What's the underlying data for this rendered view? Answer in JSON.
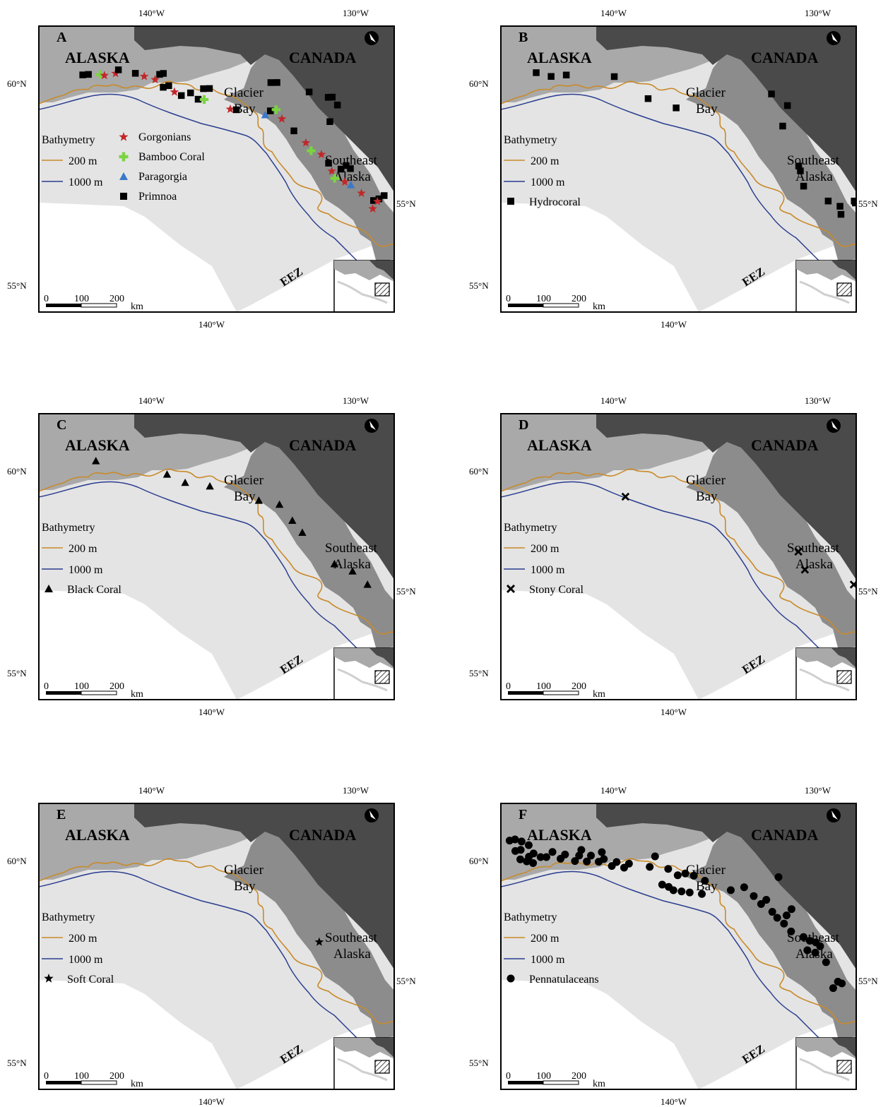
{
  "colors": {
    "land_alaska": "#a9a9a9",
    "land_canada": "#4a4a4a",
    "land_southeast": "#8c8c8c",
    "ocean_eez": "#e4e4e4",
    "ocean_out": "#ffffff",
    "iso_200": "#c98a2a",
    "iso_1000": "#2a3d8f",
    "gorgonian": "#c0282a",
    "bamboo": "#7bd341",
    "paragorgia": "#3a78c9",
    "black": "#000000"
  },
  "labels": {
    "alaska": "ALASKA",
    "canada": "CANADA",
    "glacier": "Glacier",
    "bay": "Bay",
    "southeast": "Southeast",
    "alaska_lower": "Alaska",
    "eez": "EEZ",
    "bathymetry": "Bathymetry",
    "iso200": "200 m",
    "iso1000": "1000 m",
    "scale0": "0",
    "scale100": "100",
    "scale200": "200",
    "km": "km",
    "lon140": "140°W",
    "lon130": "130°W",
    "lat60": "60°N",
    "lat55": "55°N"
  },
  "panels": [
    {
      "letter": "A",
      "legend": [
        {
          "label": "Gorgonians",
          "marker": "star",
          "color": "#c0282a"
        },
        {
          "label": "Bamboo Coral",
          "marker": "plus",
          "color": "#7bd341"
        },
        {
          "label": "Paragorgia",
          "marker": "triangle",
          "color": "#3a78c9"
        },
        {
          "label": "Primnoa",
          "marker": "square",
          "color": "#000000"
        }
      ],
      "points": [
        {
          "lon": -143.8,
          "lat": 59.92,
          "m": "square"
        },
        {
          "lon": -143.5,
          "lat": 59.95,
          "m": "square"
        },
        {
          "lon": -142.9,
          "lat": 59.98,
          "m": "plus"
        },
        {
          "lon": -142.7,
          "lat": 59.97,
          "m": "star"
        },
        {
          "lon": -142.1,
          "lat": 60.05,
          "m": "star"
        },
        {
          "lon": -141.9,
          "lat": 60.15,
          "m": "square"
        },
        {
          "lon": -141.1,
          "lat": 60.1,
          "m": "square"
        },
        {
          "lon": -140.7,
          "lat": 60.04,
          "m": "star"
        },
        {
          "lon": -140.2,
          "lat": 59.98,
          "m": "star"
        },
        {
          "lon": -139.9,
          "lat": 60.12,
          "m": "square"
        },
        {
          "lon": -139.7,
          "lat": 60.15,
          "m": "square"
        },
        {
          "lon": -139.9,
          "lat": 59.8,
          "m": "square"
        },
        {
          "lon": -139.6,
          "lat": 59.85,
          "m": "square"
        },
        {
          "lon": -139.4,
          "lat": 59.7,
          "m": "star"
        },
        {
          "lon": -139.1,
          "lat": 59.62,
          "m": "square"
        },
        {
          "lon": -138.6,
          "lat": 59.7,
          "m": "square"
        },
        {
          "lon": -138.3,
          "lat": 59.55,
          "m": "square"
        },
        {
          "lon": -138.0,
          "lat": 59.55,
          "m": "plus"
        },
        {
          "lon": -137.9,
          "lat": 59.82,
          "m": "square"
        },
        {
          "lon": -137.6,
          "lat": 59.83,
          "m": "square"
        },
        {
          "lon": -136.8,
          "lat": 59.33,
          "m": "star"
        },
        {
          "lon": -136.5,
          "lat": 59.32,
          "m": "square"
        },
        {
          "lon": -135.1,
          "lat": 59.2,
          "m": "triangle"
        },
        {
          "lon": -134.8,
          "lat": 59.3,
          "m": "square"
        },
        {
          "lon": -134.5,
          "lat": 59.33,
          "m": "plus"
        },
        {
          "lon": -134.3,
          "lat": 59.1,
          "m": "star"
        },
        {
          "lon": -134.5,
          "lat": 60.0,
          "m": "square"
        },
        {
          "lon": -134.2,
          "lat": 60.0,
          "m": "square"
        },
        {
          "lon": -133.8,
          "lat": 58.8,
          "m": "square"
        },
        {
          "lon": -133.3,
          "lat": 58.5,
          "m": "star"
        },
        {
          "lon": -133.1,
          "lat": 58.3,
          "m": "plus"
        },
        {
          "lon": -132.6,
          "lat": 58.2,
          "m": "star"
        },
        {
          "lon": -132.3,
          "lat": 57.98,
          "m": "square"
        },
        {
          "lon": -132.7,
          "lat": 59.75,
          "m": "square"
        },
        {
          "lon": -131.7,
          "lat": 57.82,
          "m": "square"
        },
        {
          "lon": -132.2,
          "lat": 57.78,
          "m": "star"
        },
        {
          "lon": -131.4,
          "lat": 57.9,
          "m": "square"
        },
        {
          "lon": -131.2,
          "lat": 57.82,
          "m": "square"
        },
        {
          "lon": -132.1,
          "lat": 57.6,
          "m": "plus"
        },
        {
          "lon": -131.6,
          "lat": 57.5,
          "m": "star"
        },
        {
          "lon": -131.3,
          "lat": 57.42,
          "m": "triangle"
        },
        {
          "lon": -131.8,
          "lat": 59.6,
          "m": "square"
        },
        {
          "lon": -131.6,
          "lat": 59.6,
          "m": "square"
        },
        {
          "lon": -131.4,
          "lat": 59.4,
          "m": "square"
        },
        {
          "lon": -131.9,
          "lat": 59.0,
          "m": "square"
        },
        {
          "lon": -130.8,
          "lat": 57.2,
          "m": "star"
        },
        {
          "lon": -130.2,
          "lat": 57.0,
          "m": "square"
        },
        {
          "lon": -129.9,
          "lat": 57.03,
          "m": "square"
        },
        {
          "lon": -129.6,
          "lat": 57.1,
          "m": "square"
        },
        {
          "lon": -130.3,
          "lat": 56.8,
          "m": "star"
        },
        {
          "lon": -130.0,
          "lat": 56.97,
          "m": "star"
        }
      ]
    },
    {
      "letter": "B",
      "legend": [
        {
          "label": "Hydrocoral",
          "marker": "square",
          "color": "#000000"
        }
      ],
      "points": [
        {
          "lon": -144.2,
          "lat": 59.95,
          "m": "square"
        },
        {
          "lon": -143.5,
          "lat": 59.9,
          "m": "square"
        },
        {
          "lon": -142.7,
          "lat": 59.98,
          "m": "square"
        },
        {
          "lon": -140.3,
          "lat": 60.05,
          "m": "square"
        },
        {
          "lon": -138.9,
          "lat": 59.55,
          "m": "square"
        },
        {
          "lon": -137.6,
          "lat": 59.35,
          "m": "square"
        },
        {
          "lon": -132.7,
          "lat": 59.7,
          "m": "square"
        },
        {
          "lon": -132.0,
          "lat": 59.4,
          "m": "square"
        },
        {
          "lon": -132.4,
          "lat": 58.9,
          "m": "square"
        },
        {
          "lon": -131.9,
          "lat": 57.9,
          "m": "square"
        },
        {
          "lon": -131.85,
          "lat": 57.78,
          "m": "square"
        },
        {
          "lon": -131.8,
          "lat": 57.4,
          "m": "square"
        },
        {
          "lon": -130.6,
          "lat": 57.0,
          "m": "square"
        },
        {
          "lon": -130.0,
          "lat": 56.85,
          "m": "square"
        },
        {
          "lon": -130.0,
          "lat": 56.65,
          "m": "square"
        },
        {
          "lon": -129.2,
          "lat": 56.95,
          "m": "square"
        },
        {
          "lon": -129.15,
          "lat": 56.9,
          "m": "square"
        }
      ]
    },
    {
      "letter": "C",
      "legend": [
        {
          "label": "Black Coral",
          "marker": "triangle",
          "color": "#000000"
        }
      ],
      "points": [
        {
          "lon": -143.1,
          "lat": 60.0,
          "m": "triangle"
        },
        {
          "lon": -139.7,
          "lat": 59.82,
          "m": "triangle"
        },
        {
          "lon": -138.9,
          "lat": 59.64,
          "m": "triangle"
        },
        {
          "lon": -137.7,
          "lat": 59.58,
          "m": "triangle"
        },
        {
          "lon": -135.4,
          "lat": 59.25,
          "m": "triangle"
        },
        {
          "lon": -134.4,
          "lat": 59.15,
          "m": "triangle"
        },
        {
          "lon": -133.9,
          "lat": 58.75,
          "m": "triangle"
        },
        {
          "lon": -133.5,
          "lat": 58.45,
          "m": "triangle"
        },
        {
          "lon": -132.1,
          "lat": 57.65,
          "m": "triangle"
        },
        {
          "lon": -131.2,
          "lat": 57.45,
          "m": "triangle"
        },
        {
          "lon": -130.5,
          "lat": 57.1,
          "m": "triangle"
        }
      ]
    },
    {
      "letter": "D",
      "legend": [
        {
          "label": "Stony Coral",
          "marker": "cross",
          "color": "#000000"
        }
      ],
      "points": [
        {
          "lon": -140.2,
          "lat": 59.25,
          "m": "cross"
        },
        {
          "lon": -131.9,
          "lat": 57.95,
          "m": "cross"
        },
        {
          "lon": -131.7,
          "lat": 57.5,
          "m": "cross"
        },
        {
          "lon": -129.2,
          "lat": 57.05,
          "m": "cross"
        }
      ]
    },
    {
      "letter": "E",
      "legend": [
        {
          "label": "Soft Coral",
          "marker": "star",
          "color": "#000000"
        }
      ],
      "points": [
        {
          "lon": -132.8,
          "lat": 57.95,
          "m": "star"
        }
      ]
    },
    {
      "letter": "F",
      "legend": [
        {
          "label": "Pennatulaceans",
          "marker": "circle",
          "color": "#000000"
        }
      ],
      "points": [
        {
          "lon": -145.4,
          "lat": 60.1,
          "m": "circle"
        },
        {
          "lon": -145.1,
          "lat": 60.15,
          "m": "circle"
        },
        {
          "lon": -144.8,
          "lat": 60.12,
          "m": "circle"
        },
        {
          "lon": -144.5,
          "lat": 60.05,
          "m": "circle"
        },
        {
          "lon": -145.3,
          "lat": 59.85,
          "m": "circle"
        },
        {
          "lon": -145.0,
          "lat": 59.9,
          "m": "circle"
        },
        {
          "lon": -144.7,
          "lat": 59.75,
          "m": "circle"
        },
        {
          "lon": -144.4,
          "lat": 59.85,
          "m": "circle"
        },
        {
          "lon": -144.1,
          "lat": 59.78,
          "m": "circle"
        },
        {
          "lon": -143.8,
          "lat": 59.8,
          "m": "circle"
        },
        {
          "lon": -145.2,
          "lat": 59.65,
          "m": "circle"
        },
        {
          "lon": -144.9,
          "lat": 59.62,
          "m": "circle"
        },
        {
          "lon": -144.6,
          "lat": 59.6,
          "m": "circle"
        },
        {
          "lon": -143.4,
          "lat": 59.95,
          "m": "circle"
        },
        {
          "lon": -143.1,
          "lat": 59.8,
          "m": "circle"
        },
        {
          "lon": -142.8,
          "lat": 59.92,
          "m": "circle"
        },
        {
          "lon": -142.4,
          "lat": 59.78,
          "m": "circle"
        },
        {
          "lon": -142.1,
          "lat": 59.93,
          "m": "circle"
        },
        {
          "lon": -141.8,
          "lat": 59.8,
          "m": "circle"
        },
        {
          "lon": -141.5,
          "lat": 59.96,
          "m": "circle"
        },
        {
          "lon": -141.2,
          "lat": 59.82,
          "m": "circle"
        },
        {
          "lon": -140.9,
          "lat": 59.9,
          "m": "circle"
        },
        {
          "lon": -140.6,
          "lat": 59.74,
          "m": "circle"
        },
        {
          "lon": -140.3,
          "lat": 59.85,
          "m": "circle"
        },
        {
          "lon": -140.0,
          "lat": 59.72,
          "m": "circle"
        },
        {
          "lon": -139.7,
          "lat": 59.83,
          "m": "circle"
        },
        {
          "lon": -141.9,
          "lat": 60.08,
          "m": "circle"
        },
        {
          "lon": -140.9,
          "lat": 60.07,
          "m": "circle"
        },
        {
          "lon": -138.7,
          "lat": 59.78,
          "m": "circle"
        },
        {
          "lon": -138.3,
          "lat": 60.05,
          "m": "circle"
        },
        {
          "lon": -137.8,
          "lat": 59.75,
          "m": "circle"
        },
        {
          "lon": -137.4,
          "lat": 59.6,
          "m": "circle"
        },
        {
          "lon": -137.0,
          "lat": 59.65,
          "m": "circle"
        },
        {
          "lon": -136.6,
          "lat": 59.6,
          "m": "circle"
        },
        {
          "lon": -136.1,
          "lat": 59.48,
          "m": "circle"
        },
        {
          "lon": -138.3,
          "lat": 59.35,
          "m": "circle"
        },
        {
          "lon": -138.0,
          "lat": 59.3,
          "m": "circle"
        },
        {
          "lon": -137.8,
          "lat": 59.22,
          "m": "circle"
        },
        {
          "lon": -137.4,
          "lat": 59.2,
          "m": "circle"
        },
        {
          "lon": -137.0,
          "lat": 59.18,
          "m": "circle"
        },
        {
          "lon": -136.4,
          "lat": 59.15,
          "m": "circle"
        },
        {
          "lon": -134.9,
          "lat": 59.25,
          "m": "circle"
        },
        {
          "lon": -134.2,
          "lat": 59.32,
          "m": "circle"
        },
        {
          "lon": -133.8,
          "lat": 59.1,
          "m": "circle"
        },
        {
          "lon": -133.5,
          "lat": 58.9,
          "m": "circle"
        },
        {
          "lon": -133.2,
          "lat": 59.0,
          "m": "circle"
        },
        {
          "lon": -133.0,
          "lat": 58.7,
          "m": "circle"
        },
        {
          "lon": -132.8,
          "lat": 58.55,
          "m": "circle"
        },
        {
          "lon": -132.5,
          "lat": 58.4,
          "m": "circle"
        },
        {
          "lon": -132.3,
          "lat": 58.6,
          "m": "circle"
        },
        {
          "lon": -132.0,
          "lat": 58.75,
          "m": "circle"
        },
        {
          "lon": -132.4,
          "lat": 59.55,
          "m": "circle"
        },
        {
          "lon": -132.2,
          "lat": 58.2,
          "m": "circle"
        },
        {
          "lon": -131.6,
          "lat": 58.05,
          "m": "circle"
        },
        {
          "lon": -131.3,
          "lat": 57.95,
          "m": "circle"
        },
        {
          "lon": -131.0,
          "lat": 57.9,
          "m": "circle"
        },
        {
          "lon": -131.5,
          "lat": 57.72,
          "m": "circle"
        },
        {
          "lon": -131.1,
          "lat": 57.65,
          "m": "circle"
        },
        {
          "lon": -130.8,
          "lat": 57.8,
          "m": "circle"
        },
        {
          "lon": -130.6,
          "lat": 57.4,
          "m": "circle"
        },
        {
          "lon": -130.1,
          "lat": 56.9,
          "m": "circle"
        },
        {
          "lon": -130.4,
          "lat": 56.75,
          "m": "circle"
        },
        {
          "lon": -129.9,
          "lat": 56.85,
          "m": "circle"
        }
      ]
    }
  ]
}
